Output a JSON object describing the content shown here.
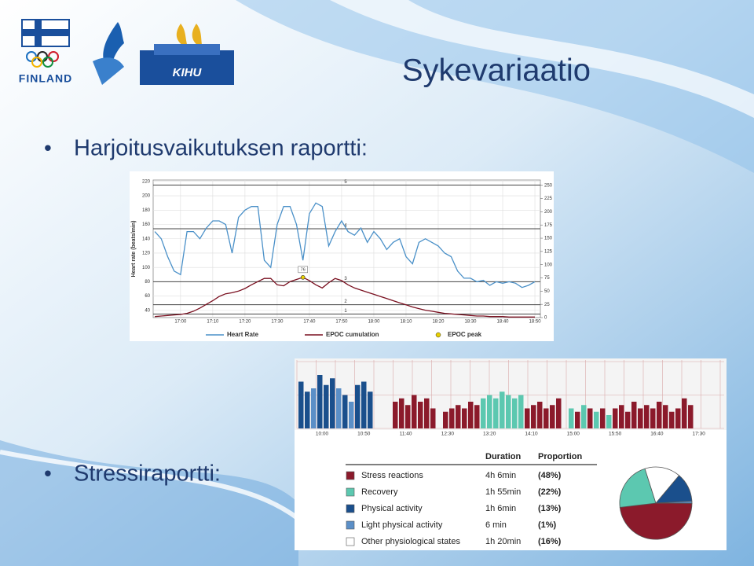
{
  "slide": {
    "title": "Sykevariaatio",
    "bullets": [
      "Harjoitusvaikutuksen raportti:",
      "Stressiraportti:"
    ],
    "logos": [
      "FINLAND",
      "KIHU"
    ]
  },
  "hr_chart": {
    "type": "line",
    "ylabel": "Heart rate (beats/min)",
    "xlim": [
      1.5,
      121.7
    ],
    "xticks": [
      {
        "value": 10,
        "label": "17:00"
      },
      {
        "value": 20,
        "label": "17:10"
      },
      {
        "value": 30,
        "label": "17:20"
      },
      {
        "value": 40,
        "label": "17:30"
      },
      {
        "value": 50,
        "label": "17:40"
      },
      {
        "value": 60,
        "label": "17:50"
      },
      {
        "value": 70,
        "label": "18:00"
      },
      {
        "value": 80,
        "label": "18:10"
      },
      {
        "value": 90,
        "label": "18:20"
      },
      {
        "value": 100,
        "label": "18:30"
      },
      {
        "value": 110,
        "label": "18:40"
      },
      {
        "value": 120,
        "label": "18:50"
      }
    ],
    "ylim": [
      30,
      222
    ],
    "yticks": [
      40,
      60,
      80,
      100,
      120,
      140,
      160,
      180,
      200,
      220
    ],
    "y2lim": [
      0,
      260
    ],
    "y2ticks": [
      0,
      25,
      50,
      75,
      100,
      125,
      150,
      175,
      200,
      225,
      250
    ],
    "zones": [
      {
        "label": "5",
        "value": 215
      },
      {
        "label": "4",
        "value": 154
      },
      {
        "label": "3",
        "value": 80
      },
      {
        "label": "2",
        "value": 48
      },
      {
        "label": "1",
        "value": 35
      }
    ],
    "grid": true,
    "x": [
      2,
      4,
      6,
      8,
      10,
      12,
      14,
      16,
      18,
      20,
      22,
      24,
      26,
      28,
      30,
      32,
      34,
      36,
      38,
      40,
      42,
      44,
      46,
      48,
      50,
      52,
      54,
      56,
      58,
      60,
      62,
      64,
      66,
      68,
      70,
      72,
      74,
      76,
      78,
      80,
      82,
      84,
      86,
      88,
      90,
      92,
      94,
      96,
      98,
      100,
      102,
      104,
      106,
      108,
      110,
      112,
      114,
      116,
      118,
      120
    ],
    "series": [
      {
        "name": "Heart Rate",
        "color": "#4a90c8",
        "values": [
          150,
          140,
          115,
          95,
          90,
          150,
          150,
          140,
          155,
          165,
          165,
          160,
          120,
          170,
          180,
          185,
          185,
          110,
          100,
          160,
          185,
          185,
          160,
          110,
          175,
          190,
          185,
          130,
          150,
          165,
          150,
          145,
          155,
          135,
          150,
          140,
          125,
          135,
          140,
          115,
          105,
          135,
          140,
          135,
          130,
          120,
          115,
          95,
          85,
          85,
          80,
          82,
          75,
          80,
          78,
          80,
          78,
          72,
          75,
          80
        ]
      },
      {
        "name": "EPOC cumulation",
        "color": "#7a1020",
        "axis": "y2",
        "values": [
          2,
          3,
          4,
          5,
          6,
          8,
          12,
          18,
          25,
          32,
          40,
          45,
          47,
          50,
          55,
          62,
          68,
          74,
          74,
          62,
          60,
          68,
          72,
          76,
          70,
          62,
          56,
          66,
          74,
          70,
          62,
          56,
          52,
          48,
          44,
          40,
          36,
          32,
          28,
          24,
          20,
          17,
          14,
          12,
          10,
          8,
          7,
          6,
          5,
          4,
          3,
          3,
          2,
          2,
          2,
          1,
          1,
          1,
          1,
          1
        ]
      }
    ],
    "peak": {
      "name": "EPOC peak",
      "x": 48,
      "value": 76,
      "label": "76",
      "color": "#e8d000"
    }
  },
  "stress_chart": {
    "type": "bar",
    "ylim": [
      0,
      100
    ],
    "xticks": [
      "10:00",
      "10:50",
      "11:40",
      "12:30",
      "13:20",
      "14:10",
      "15:00",
      "15:50",
      "16:40",
      "17:30"
    ],
    "values": [
      70,
      55,
      60,
      80,
      65,
      75,
      60,
      50,
      40,
      65,
      70,
      55,
      0,
      0,
      0,
      40,
      45,
      35,
      50,
      40,
      45,
      30,
      0,
      25,
      30,
      35,
      30,
      40,
      35,
      45,
      50,
      45,
      55,
      50,
      45,
      50,
      30,
      35,
      40,
      30,
      35,
      45,
      0,
      30,
      25,
      35,
      30,
      25,
      30,
      20,
      30,
      35,
      25,
      40,
      30,
      35,
      30,
      40,
      35,
      25,
      30,
      45,
      35
    ],
    "states": [
      2,
      2,
      3,
      2,
      2,
      2,
      3,
      2,
      3,
      2,
      2,
      2,
      4,
      4,
      4,
      0,
      0,
      0,
      0,
      0,
      0,
      0,
      4,
      0,
      0,
      0,
      0,
      0,
      0,
      1,
      1,
      1,
      1,
      1,
      1,
      1,
      0,
      0,
      0,
      0,
      0,
      0,
      4,
      1,
      0,
      1,
      0,
      1,
      0,
      1,
      0,
      0,
      0,
      0,
      0,
      0,
      0,
      0,
      0,
      0,
      0,
      0,
      0
    ],
    "table": {
      "headers": [
        "Duration",
        "Proportion"
      ],
      "rows": [
        {
          "name": "Stress reactions",
          "color": "#8b1a2b",
          "duration": "4h 6min",
          "value": 48,
          "value_label": "(48%)"
        },
        {
          "name": "Recovery",
          "color": "#5cc8b0",
          "duration": "1h 55min",
          "value": 22,
          "value_label": "(22%)"
        },
        {
          "name": "Physical activity",
          "color": "#1a4f8c",
          "duration": "1h 6min",
          "value": 13,
          "value_label": "(13%)"
        },
        {
          "name": "Light physical activity",
          "color": "#5b8fc7",
          "duration": "6 min",
          "value": 1,
          "value_label": "(1%)"
        },
        {
          "name": "Other physiological states",
          "color": "#ffffff",
          "duration": "1h 20min",
          "value": 16,
          "value_label": "(16%)"
        }
      ]
    }
  }
}
